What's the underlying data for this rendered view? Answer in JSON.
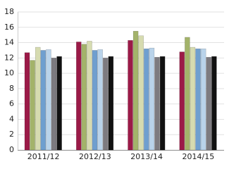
{
  "chart_data": {
    "type": "bar",
    "categories": [
      "2011/12",
      "2012/13",
      "2013/14",
      "2014/15"
    ],
    "series": [
      {
        "color": "#9b1a47",
        "values": [
          12.7,
          14.1,
          14.3,
          12.8
        ]
      },
      {
        "color": "#a3b36a",
        "values": [
          11.7,
          13.8,
          15.5,
          14.7
        ]
      },
      {
        "color": "#d6dbb0",
        "values": [
          13.4,
          14.2,
          14.9,
          13.4
        ]
      },
      {
        "color": "#6f9fcf",
        "values": [
          13.0,
          13.0,
          13.2,
          13.2
        ]
      },
      {
        "color": "#b9d3ea",
        "values": [
          13.1,
          13.1,
          13.3,
          13.2
        ]
      },
      {
        "color": "#7d7b80",
        "values": [
          12.0,
          12.0,
          12.1,
          12.1
        ]
      },
      {
        "color": "#111111",
        "values": [
          12.2,
          12.2,
          12.2,
          12.2
        ]
      }
    ],
    "ylim": [
      0,
      18
    ],
    "yticks": [
      0,
      2,
      4,
      6,
      8,
      10,
      12,
      14,
      16,
      18
    ],
    "grid": true
  }
}
